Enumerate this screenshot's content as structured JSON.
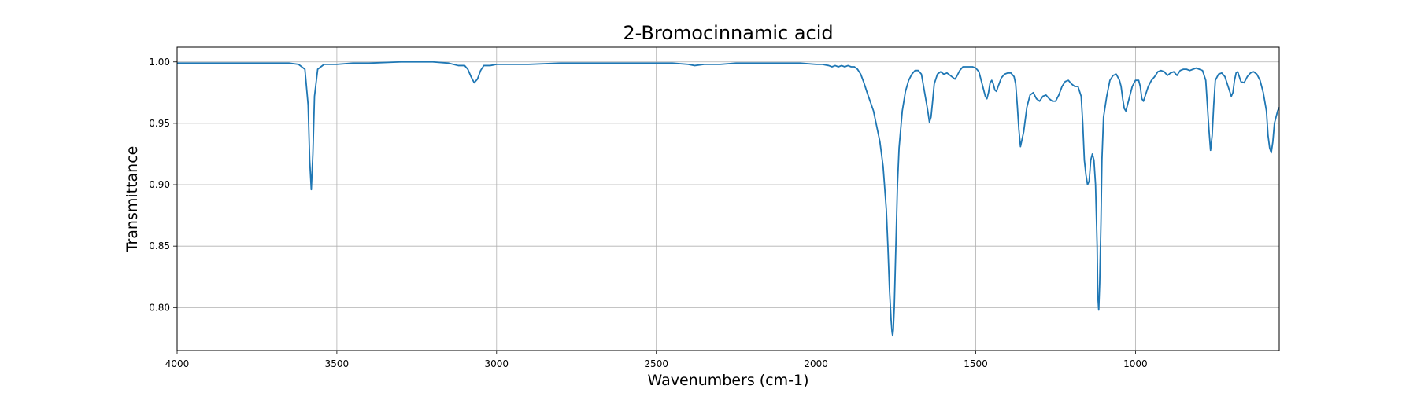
{
  "chart_data": {
    "type": "line",
    "title": "2-Bromocinnamic acid",
    "xlabel": "Wavenumbers (cm-1)",
    "ylabel": "Transmittance",
    "xlim": [
      4000,
      550
    ],
    "ylim": [
      0.765,
      1.012
    ],
    "x_reversed": true,
    "grid": true,
    "x_ticks": [
      4000,
      3500,
      3000,
      2500,
      2000,
      1500,
      1000
    ],
    "x_tick_labels": [
      "4000",
      "3500",
      "3000",
      "2500",
      "2000",
      "1500",
      "1000"
    ],
    "y_ticks": [
      0.8,
      0.85,
      0.9,
      0.95,
      1.0
    ],
    "y_tick_labels": [
      "0.80",
      "0.85",
      "0.90",
      "0.95",
      "1.00"
    ],
    "colors": {
      "series": "#1f77b4"
    },
    "series": [
      {
        "x": [
          4000,
          3900,
          3800,
          3700,
          3650,
          3620,
          3600,
          3590,
          3585,
          3580,
          3575,
          3570,
          3560,
          3540,
          3500,
          3450,
          3400,
          3300,
          3200,
          3150,
          3120,
          3100,
          3090,
          3080,
          3070,
          3060,
          3050,
          3040,
          3020,
          3000,
          2900,
          2800,
          2700,
          2600,
          2500,
          2450,
          2400,
          2380,
          2350,
          2300,
          2250,
          2200,
          2100,
          2050,
          2000,
          1980,
          1960,
          1950,
          1940,
          1930,
          1920,
          1910,
          1900,
          1890,
          1880,
          1870,
          1860,
          1850,
          1840,
          1820,
          1800,
          1790,
          1780,
          1775,
          1770,
          1765,
          1762,
          1760,
          1758,
          1755,
          1750,
          1745,
          1740,
          1730,
          1720,
          1710,
          1700,
          1690,
          1680,
          1670,
          1660,
          1650,
          1645,
          1640,
          1635,
          1630,
          1620,
          1610,
          1600,
          1590,
          1580,
          1570,
          1565,
          1560,
          1550,
          1540,
          1530,
          1520,
          1510,
          1500,
          1490,
          1480,
          1470,
          1465,
          1460,
          1455,
          1450,
          1445,
          1440,
          1435,
          1430,
          1420,
          1410,
          1400,
          1390,
          1380,
          1375,
          1370,
          1365,
          1360,
          1350,
          1340,
          1330,
          1320,
          1310,
          1300,
          1290,
          1280,
          1270,
          1260,
          1250,
          1240,
          1230,
          1220,
          1210,
          1200,
          1190,
          1180,
          1170,
          1165,
          1160,
          1155,
          1150,
          1145,
          1140,
          1135,
          1130,
          1125,
          1120,
          1118,
          1115,
          1112,
          1108,
          1105,
          1100,
          1090,
          1080,
          1070,
          1060,
          1050,
          1045,
          1040,
          1035,
          1030,
          1020,
          1010,
          1000,
          990,
          985,
          980,
          975,
          970,
          960,
          950,
          940,
          930,
          920,
          910,
          900,
          890,
          880,
          870,
          860,
          850,
          840,
          830,
          820,
          810,
          800,
          790,
          780,
          775,
          770,
          765,
          760,
          755,
          750,
          740,
          730,
          720,
          710,
          700,
          695,
          690,
          685,
          680,
          675,
          670,
          660,
          650,
          640,
          630,
          620,
          610,
          600,
          590,
          585,
          580,
          575,
          570,
          565,
          560,
          555,
          550
        ],
        "y": [
          0.999,
          0.999,
          0.999,
          0.999,
          0.999,
          0.998,
          0.994,
          0.965,
          0.92,
          0.896,
          0.925,
          0.972,
          0.994,
          0.998,
          0.998,
          0.999,
          0.999,
          1.0,
          1.0,
          0.999,
          0.997,
          0.997,
          0.994,
          0.988,
          0.983,
          0.986,
          0.993,
          0.997,
          0.997,
          0.998,
          0.998,
          0.999,
          0.999,
          0.999,
          0.999,
          0.999,
          0.998,
          0.997,
          0.998,
          0.998,
          0.999,
          0.999,
          0.999,
          0.999,
          0.998,
          0.998,
          0.997,
          0.996,
          0.997,
          0.996,
          0.997,
          0.996,
          0.997,
          0.996,
          0.996,
          0.994,
          0.99,
          0.983,
          0.975,
          0.96,
          0.935,
          0.915,
          0.88,
          0.85,
          0.815,
          0.79,
          0.78,
          0.777,
          0.782,
          0.8,
          0.85,
          0.9,
          0.93,
          0.96,
          0.976,
          0.985,
          0.99,
          0.993,
          0.993,
          0.99,
          0.975,
          0.96,
          0.951,
          0.955,
          0.968,
          0.982,
          0.99,
          0.992,
          0.99,
          0.991,
          0.989,
          0.987,
          0.986,
          0.988,
          0.993,
          0.996,
          0.996,
          0.996,
          0.996,
          0.995,
          0.992,
          0.982,
          0.972,
          0.97,
          0.975,
          0.983,
          0.985,
          0.982,
          0.977,
          0.976,
          0.98,
          0.987,
          0.99,
          0.991,
          0.991,
          0.988,
          0.982,
          0.965,
          0.945,
          0.931,
          0.943,
          0.963,
          0.973,
          0.975,
          0.97,
          0.968,
          0.972,
          0.973,
          0.97,
          0.968,
          0.968,
          0.973,
          0.98,
          0.984,
          0.985,
          0.982,
          0.98,
          0.98,
          0.972,
          0.95,
          0.92,
          0.908,
          0.9,
          0.903,
          0.92,
          0.925,
          0.92,
          0.9,
          0.85,
          0.81,
          0.798,
          0.82,
          0.87,
          0.92,
          0.955,
          0.972,
          0.985,
          0.989,
          0.99,
          0.985,
          0.98,
          0.97,
          0.962,
          0.96,
          0.97,
          0.98,
          0.985,
          0.985,
          0.98,
          0.97,
          0.968,
          0.972,
          0.98,
          0.985,
          0.988,
          0.992,
          0.993,
          0.992,
          0.989,
          0.991,
          0.992,
          0.989,
          0.993,
          0.994,
          0.994,
          0.993,
          0.994,
          0.995,
          0.994,
          0.993,
          0.985,
          0.965,
          0.945,
          0.928,
          0.94,
          0.965,
          0.985,
          0.99,
          0.991,
          0.988,
          0.98,
          0.972,
          0.975,
          0.985,
          0.991,
          0.992,
          0.988,
          0.984,
          0.983,
          0.988,
          0.991,
          0.992,
          0.99,
          0.985,
          0.975,
          0.96,
          0.94,
          0.93,
          0.926,
          0.935,
          0.95,
          0.955,
          0.96,
          0.963
        ]
      }
    ]
  }
}
